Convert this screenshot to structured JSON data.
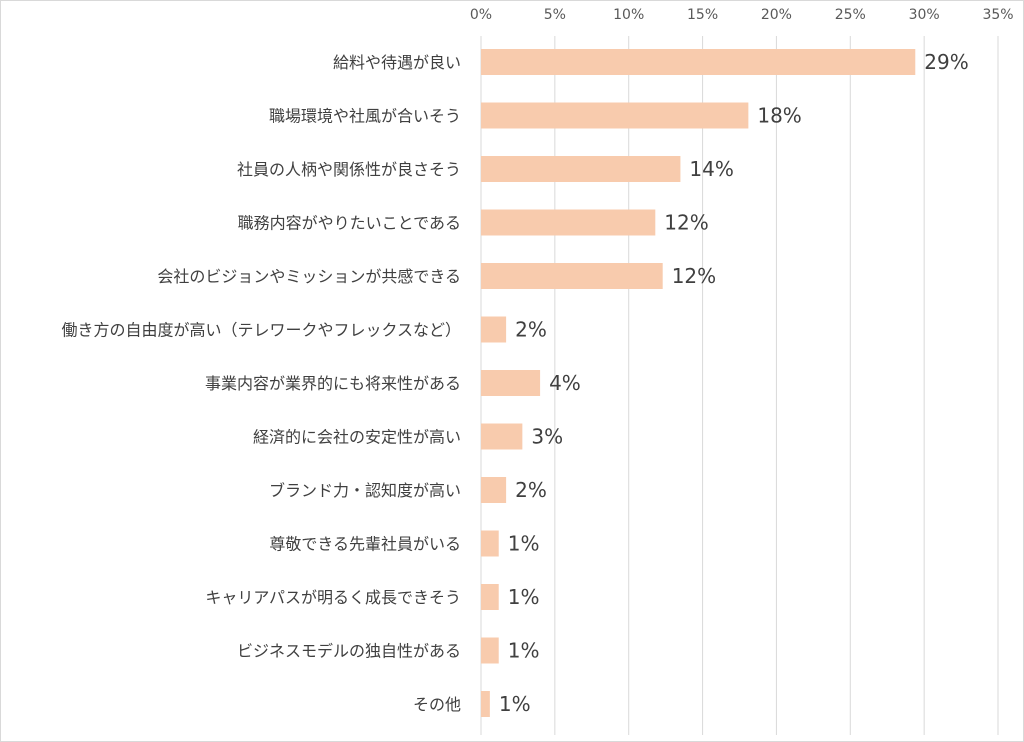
{
  "chart_data": {
    "type": "bar",
    "orientation": "horizontal",
    "title": "",
    "xlabel": "",
    "ylabel": "",
    "xlim": [
      0,
      35
    ],
    "x_ticks": [
      "0%",
      "5%",
      "10%",
      "15%",
      "20%",
      "25%",
      "30%",
      "35%"
    ],
    "x_tick_values": [
      0,
      5,
      10,
      15,
      20,
      25,
      30,
      35
    ],
    "axis_position": "top",
    "grid": true,
    "legend": "none",
    "bar_color": "#f8cbad",
    "categories": [
      "給料や待遇が良い",
      "職場環境や社風が合いそう",
      "社員の人柄や関係性が良さそう",
      "職務内容がやりたいことである",
      "会社のビジョンやミッションが共感できる",
      "働き方の自由度が高い（テレワークやフレックスなど）",
      "事業内容が業界的にも将来性がある",
      "経済的に会社の安定性が高い",
      "ブランド力・認知度が高い",
      "尊敬できる先輩社員がいる",
      "キャリアパスが明るく成長できそう",
      "ビジネスモデルの独自性がある",
      "その他"
    ],
    "values": [
      29.4,
      18.1,
      13.5,
      11.8,
      12.3,
      1.7,
      4.0,
      2.8,
      1.7,
      1.2,
      1.2,
      1.2,
      0.6
    ],
    "data_labels": [
      "29%",
      "18%",
      "14%",
      "12%",
      "12%",
      "2%",
      "4%",
      "3%",
      "2%",
      "1%",
      "1%",
      "1%",
      "1%"
    ]
  }
}
